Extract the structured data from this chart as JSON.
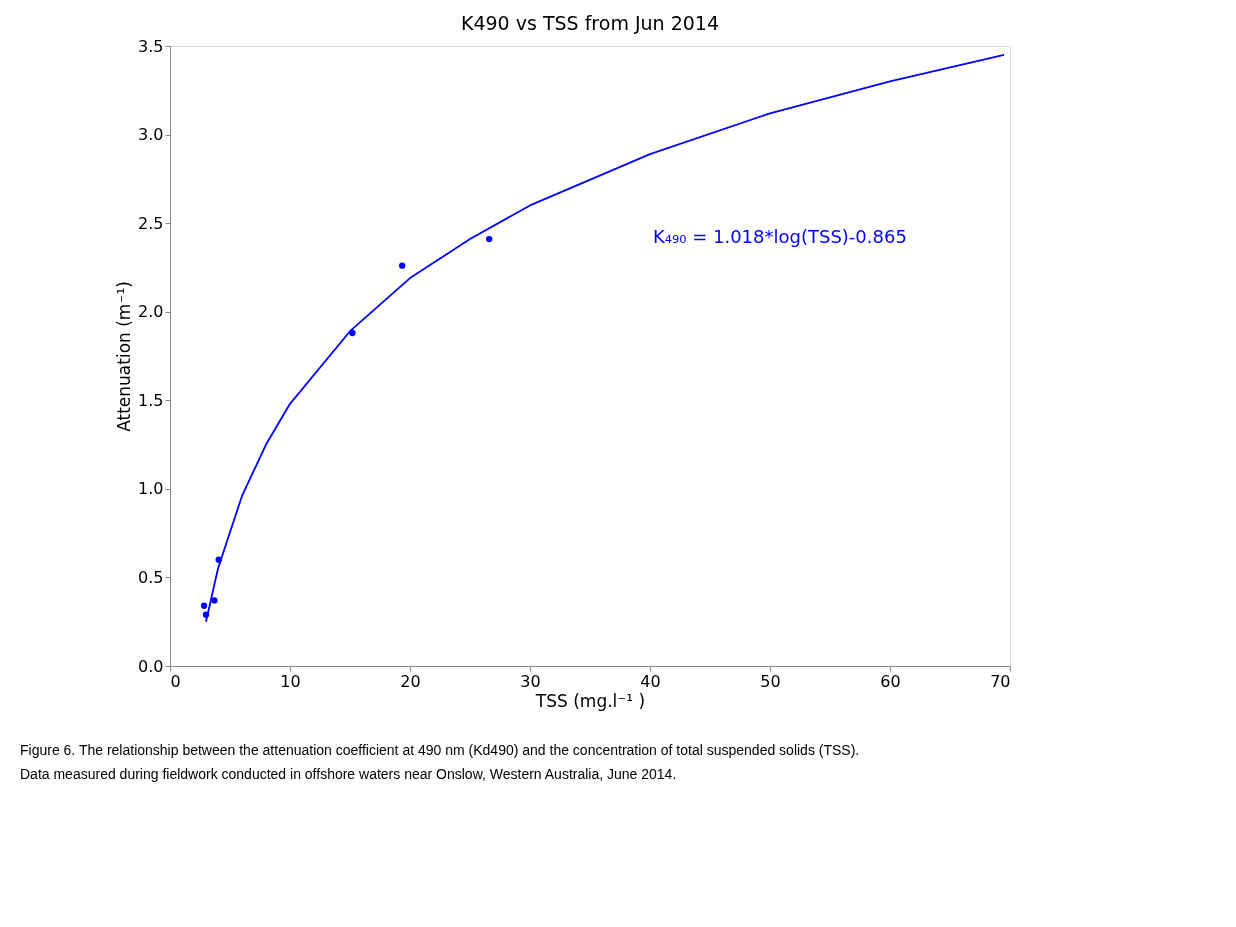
{
  "chart_data": {
    "type": "scatter",
    "title": "K490 vs TSS from Jun 2014",
    "xlabel": "TSS (mg.l⁻¹ )",
    "ylabel": "Attenuation (m⁻¹)",
    "xlim": [
      0,
      70
    ],
    "ylim": [
      0,
      3.5
    ],
    "xticks": [
      0,
      10,
      20,
      30,
      40,
      50,
      60,
      70
    ],
    "yticks": [
      {
        "value": 0,
        "label": "0.0"
      },
      0.5,
      {
        "value": 1,
        "label": "1.0"
      },
      1.5,
      {
        "value": 2,
        "label": "2.0"
      },
      2.5,
      {
        "value": 3,
        "label": "3.0"
      },
      3.5
    ],
    "grid": false,
    "marker": "circle",
    "series": [
      {
        "color": "#0000ff",
        "x": [
          2.84,
          3.0,
          3.7,
          4.06,
          15.2,
          19.35,
          26.6
        ],
        "values": [
          0.34,
          0.29,
          0.37,
          0.6,
          1.88,
          2.26,
          2.41
        ]
      },
      {
        "type": "line",
        "color": "#0000ff",
        "marker": "none",
        "x": [
          3,
          4,
          6,
          8,
          10,
          15,
          20,
          25,
          30,
          40,
          50,
          60,
          69.5
        ],
        "values": [
          0.25,
          0.55,
          0.96,
          1.25,
          1.48,
          1.89,
          2.19,
          2.41,
          2.6,
          2.89,
          3.12,
          3.3,
          3.45
        ]
      }
    ],
    "annotations": [
      "K₄₉₀ = 1.018*log(TSS)-0.865",
      "Figure 6. The relationship between the attenuation coefficient at 490 nm (Kd490) and the concentration of total suspended solids (TSS).",
      "Data measured during fieldwork conducted in offshore waters near Onslow, Western Australia, June 2014."
    ]
  }
}
